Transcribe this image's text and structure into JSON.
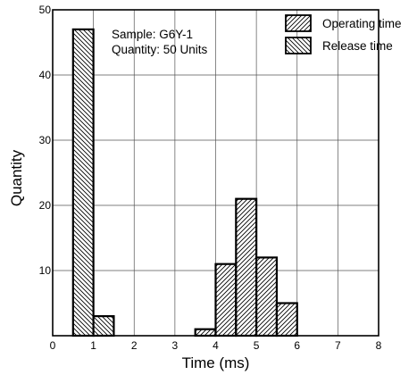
{
  "chart_data": {
    "type": "bar",
    "xlabel": "Time (ms)",
    "ylabel": "Quantity",
    "xlim": [
      0,
      8
    ],
    "ylim": [
      0,
      50
    ],
    "x_ticks": [
      "0",
      "1",
      "2",
      "3",
      "4",
      "5",
      "6",
      "7",
      "8"
    ],
    "y_ticks": [
      "10",
      "20",
      "30",
      "40",
      "50"
    ],
    "grid": true,
    "bin_width": 0.5,
    "annotation": [
      "Sample: G6Y-1",
      "Quantity: 50 Units"
    ],
    "legend_position": "top-right",
    "series": [
      {
        "name": "Operating time",
        "hatch": "forward",
        "bins": [
          {
            "x0": 3.5,
            "x1": 4.0,
            "value": 1
          },
          {
            "x0": 4.0,
            "x1": 4.5,
            "value": 11
          },
          {
            "x0": 4.5,
            "x1": 5.0,
            "value": 21
          },
          {
            "x0": 5.0,
            "x1": 5.5,
            "value": 12
          },
          {
            "x0": 5.5,
            "x1": 6.0,
            "value": 5
          }
        ]
      },
      {
        "name": "Release time",
        "hatch": "backward",
        "bins": [
          {
            "x0": 0.5,
            "x1": 1.0,
            "value": 47
          },
          {
            "x0": 1.0,
            "x1": 1.5,
            "value": 3
          }
        ]
      }
    ]
  }
}
